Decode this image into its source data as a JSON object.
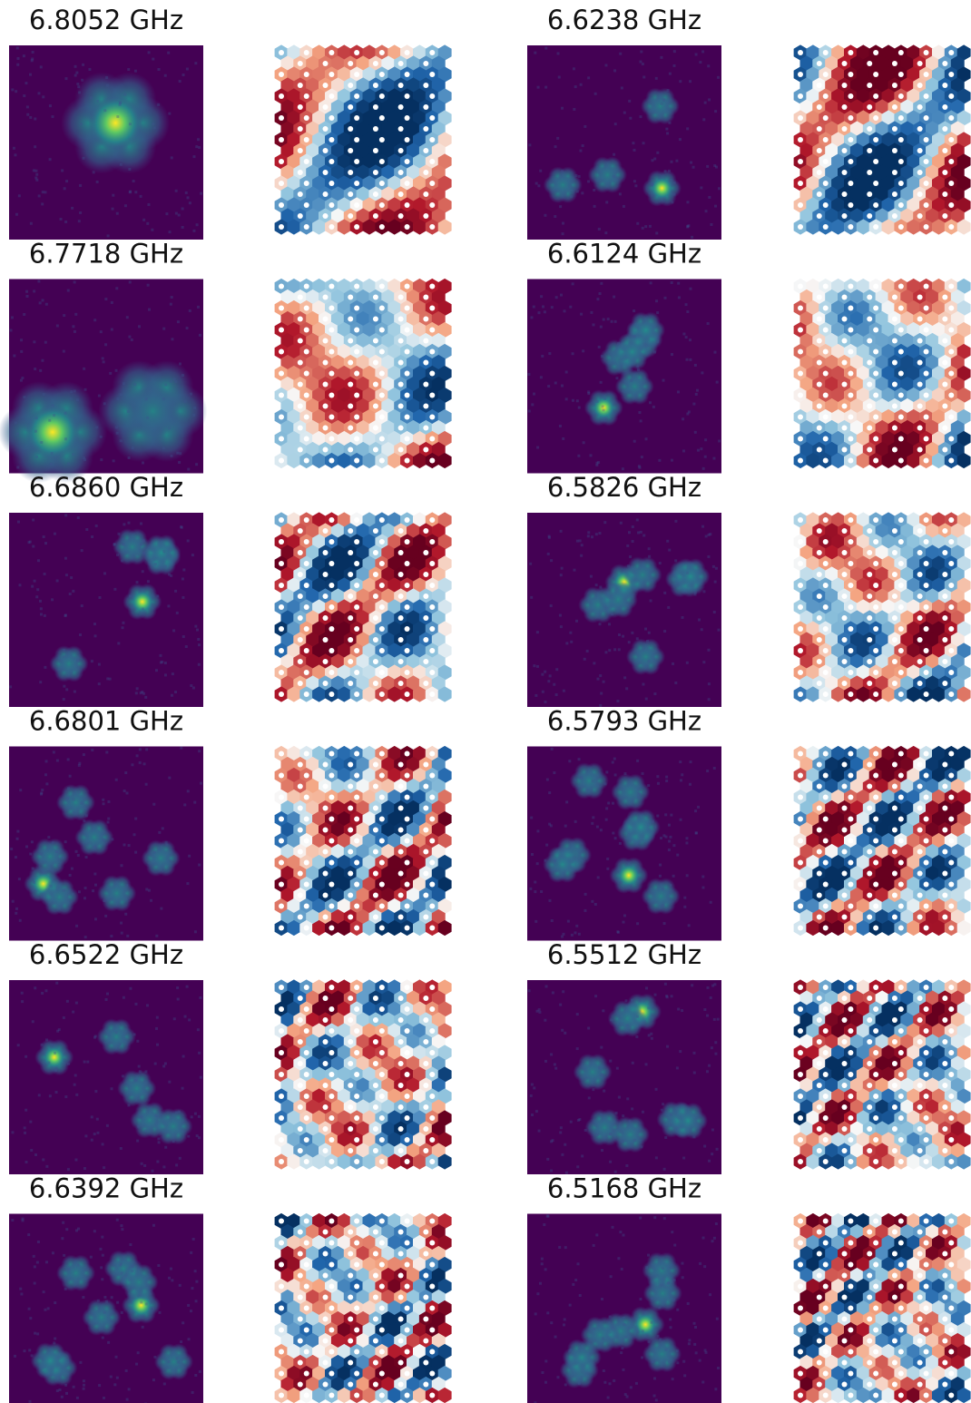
{
  "panels": [
    {
      "title": "6.8052 GHz"
    },
    {
      "title": "6.6238 GHz"
    },
    {
      "title": "6.7718 GHz"
    },
    {
      "title": "6.6124 GHz"
    },
    {
      "title": "6.6860 GHz"
    },
    {
      "title": "6.5826 GHz"
    },
    {
      "title": "6.6801 GHz"
    },
    {
      "title": "6.5793 GHz"
    },
    {
      "title": "6.6522 GHz"
    },
    {
      "title": "6.5512 GHz"
    },
    {
      "title": "6.6392 GHz"
    },
    {
      "title": "6.5168 GHz"
    }
  ]
}
